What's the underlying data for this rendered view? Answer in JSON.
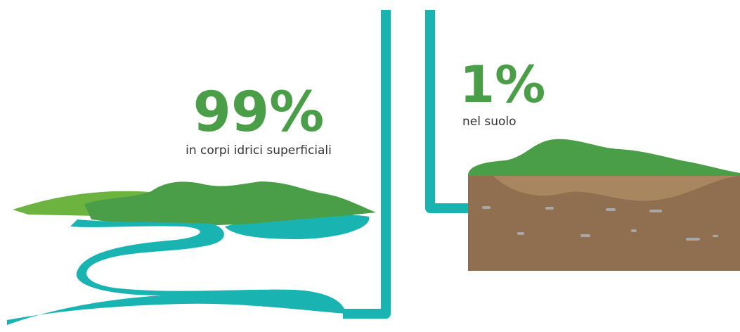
{
  "left": {
    "percent": "99%",
    "label": "in corpi idrici superficiali"
  },
  "right": {
    "percent": "1%",
    "label": "nel suolo"
  }
}
